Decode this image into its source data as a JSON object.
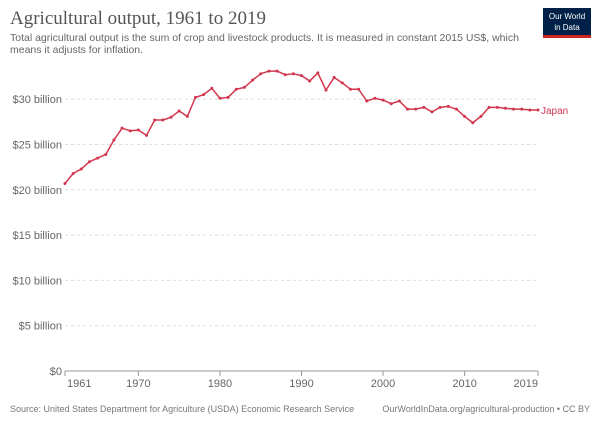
{
  "header": {
    "title": "Agricultural output, 1961 to 2019",
    "subtitle": "Total agricultural output is the sum of crop and livestock products. It is measured in constant 2015 US$, which means it adjusts for inflation."
  },
  "logo": {
    "line1": "Our World",
    "line2": "in Data"
  },
  "footer": {
    "source": "Source: United States Department for Agriculture (USDA) Economic Research Service",
    "link": "OurWorldInData.org/agricultural-production • CC BY"
  },
  "colors": {
    "series": "#d1364e",
    "grid": "#dddddd",
    "axis": "#999999",
    "tick_text": "#666666",
    "logo_bg": "#002147",
    "logo_accent": "#ce261e"
  },
  "chart_data": {
    "type": "line",
    "title": "Agricultural output, 1961 to 2019",
    "xlabel": "",
    "ylabel": "",
    "xlim": [
      1961,
      2019
    ],
    "ylim": [
      0,
      33
    ],
    "grid": true,
    "x_ticks": [
      {
        "value": 1961,
        "label": "1961"
      },
      {
        "value": 1970,
        "label": "1970"
      },
      {
        "value": 1980,
        "label": "1980"
      },
      {
        "value": 1990,
        "label": "1990"
      },
      {
        "value": 2000,
        "label": "2000"
      },
      {
        "value": 2010,
        "label": "2010"
      },
      {
        "value": 2019,
        "label": "2019"
      }
    ],
    "y_ticks": [
      {
        "value": 0,
        "label": "$0"
      },
      {
        "value": 5,
        "label": "$5 billion"
      },
      {
        "value": 10,
        "label": "$10 billion"
      },
      {
        "value": 15,
        "label": "$15 billion"
      },
      {
        "value": 20,
        "label": "$20 billion"
      },
      {
        "value": 25,
        "label": "$25 billion"
      },
      {
        "value": 30,
        "label": "$30 billion"
      }
    ],
    "series": [
      {
        "name": "Japan",
        "x": [
          1961,
          1962,
          1963,
          1964,
          1965,
          1966,
          1967,
          1968,
          1969,
          1970,
          1971,
          1972,
          1973,
          1974,
          1975,
          1976,
          1977,
          1978,
          1979,
          1980,
          1981,
          1982,
          1983,
          1984,
          1985,
          1986,
          1987,
          1988,
          1989,
          1990,
          1991,
          1992,
          1993,
          1994,
          1995,
          1996,
          1997,
          1998,
          1999,
          2000,
          2001,
          2002,
          2003,
          2004,
          2005,
          2006,
          2007,
          2008,
          2009,
          2010,
          2011,
          2012,
          2013,
          2014,
          2015,
          2016,
          2017,
          2018,
          2019
        ],
        "values": [
          20.7,
          21.8,
          22.3,
          23.1,
          23.5,
          23.9,
          25.5,
          26.8,
          26.5,
          26.6,
          26.0,
          27.7,
          27.7,
          28.0,
          28.7,
          28.1,
          30.2,
          30.5,
          31.2,
          30.1,
          30.2,
          31.1,
          31.3,
          32.1,
          32.8,
          33.1,
          33.1,
          32.7,
          32.8,
          32.6,
          32.0,
          32.9,
          31.0,
          32.4,
          31.8,
          31.1,
          31.1,
          29.8,
          30.1,
          29.9,
          29.5,
          29.8,
          28.9,
          28.9,
          29.1,
          28.6,
          29.1,
          29.2,
          28.9,
          28.1,
          27.4,
          28.1,
          29.1,
          29.1,
          29.0,
          28.9,
          28.9,
          28.8,
          28.8
        ]
      }
    ]
  }
}
